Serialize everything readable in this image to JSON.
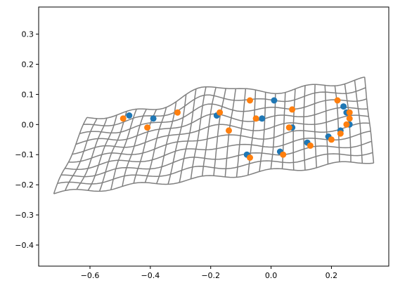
{
  "chart_data": {
    "type": "scatter",
    "title": "",
    "xlabel": "",
    "ylabel": "",
    "xlim": [
      -0.77,
      0.39
    ],
    "ylim": [
      -0.47,
      0.39
    ],
    "xticks": [
      -0.6,
      -0.4,
      -0.2,
      0.0,
      0.2
    ],
    "xtick_labels": [
      "−0.6",
      "−0.4",
      "−0.2",
      "0.0",
      "0.2"
    ],
    "yticks": [
      -0.4,
      -0.3,
      -0.2,
      -0.1,
      0.0,
      0.1,
      0.2,
      0.3
    ],
    "ytick_labels": [
      "−0.4",
      "−0.3",
      "−0.2",
      "−0.1",
      "0.0",
      "0.1",
      "0.2",
      "0.3"
    ],
    "grid": false,
    "legend": "none",
    "colors": {
      "series_1": "#1f77b4",
      "series_2": "#ff7f0e",
      "mesh": "#808080",
      "axes": "#000000"
    },
    "mesh": {
      "corners": {
        "bottom_left": [
          -0.72,
          -0.23
        ],
        "top_left": [
          -0.61,
          0.02
        ],
        "bottom_right": [
          0.34,
          -0.12
        ],
        "top_right": [
          0.31,
          0.15
        ]
      },
      "columns": 28,
      "rows": 9
    },
    "series": [
      {
        "x": [
          -0.47,
          -0.39,
          -0.18,
          -0.08,
          -0.03,
          0.01,
          0.03,
          0.07,
          0.12,
          0.19,
          0.23,
          0.24,
          0.25,
          0.26
        ],
        "y": [
          0.03,
          0.02,
          0.03,
          -0.1,
          0.02,
          0.08,
          -0.09,
          -0.01,
          -0.06,
          -0.04,
          -0.02,
          0.06,
          0.04,
          0.0
        ]
      },
      {
        "x": [
          -0.49,
          -0.41,
          -0.31,
          -0.17,
          -0.14,
          -0.07,
          -0.07,
          -0.05,
          0.04,
          0.06,
          0.07,
          0.13,
          0.2,
          0.22,
          0.23,
          0.25,
          0.26,
          0.26
        ],
        "y": [
          0.02,
          -0.01,
          0.04,
          0.04,
          -0.02,
          0.08,
          -0.11,
          0.02,
          -0.1,
          -0.01,
          0.05,
          -0.07,
          -0.05,
          0.08,
          -0.03,
          0.0,
          0.04,
          0.02
        ]
      }
    ]
  }
}
